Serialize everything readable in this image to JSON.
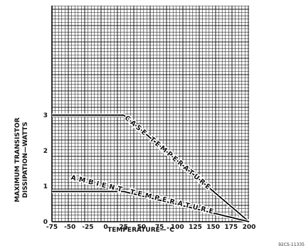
{
  "chart_data": {
    "type": "line",
    "title": "",
    "xlabel": "TEMPERATURE—°C",
    "ylabel_lines": [
      "MAXIMUM TRANSISTOR",
      "DISSIPATION—WATTS"
    ],
    "xlim": [
      -75,
      200
    ],
    "ylim": [
      0,
      3
    ],
    "x_ticks": [
      -75,
      -50,
      -25,
      0,
      25,
      50,
      75,
      100,
      125,
      150,
      175,
      200
    ],
    "x_tick_labels": [
      "-75",
      "-50",
      "-25",
      "0",
      "25",
      "50",
      "75",
      "100",
      "125",
      "150",
      "175",
      "200"
    ],
    "y_ticks": [
      0,
      1,
      2,
      3
    ],
    "y_tick_labels": [
      "0",
      "1",
      "2",
      "3"
    ],
    "grid": true,
    "series": [
      {
        "name": "CASE TEMPERATURE",
        "x": [
          -75,
          25,
          200
        ],
        "y": [
          3,
          3,
          0
        ]
      },
      {
        "name": "AMBIENT TEMPERATURE",
        "x": [
          -75,
          25,
          200
        ],
        "y": [
          0.85,
          0.85,
          0
        ]
      }
    ],
    "corner_note": "92CS-11335"
  }
}
